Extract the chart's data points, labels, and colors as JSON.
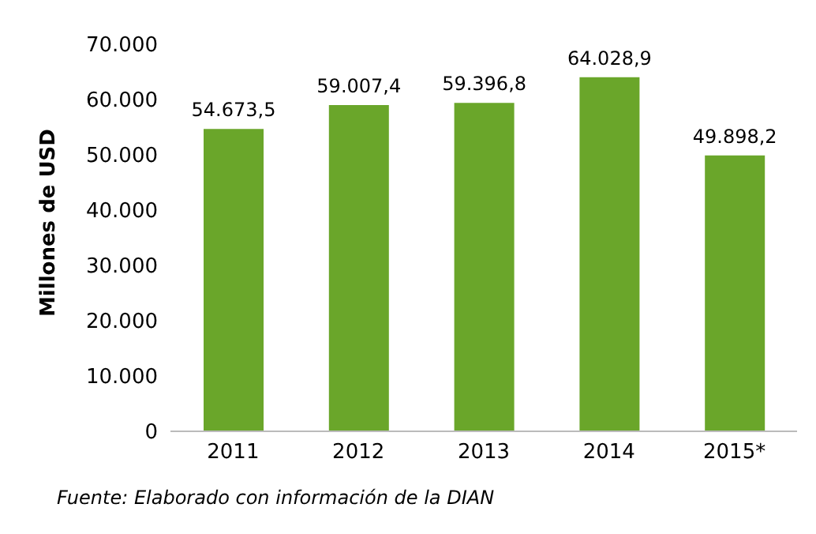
{
  "chart_data": {
    "type": "bar",
    "ylabel": "Millones de USD",
    "categories": [
      "2011",
      "2012",
      "2013",
      "2014",
      "2015*"
    ],
    "values": [
      54673.5,
      59007.4,
      59396.8,
      64028.9,
      49898.2
    ],
    "value_labels": [
      "54.673,5",
      "59.007,4",
      "59.396,8",
      "64.028,9",
      "49.898,2"
    ],
    "color": "#6aa62a",
    "ylim": [
      0,
      70000
    ],
    "yticks": [
      {
        "value": 0,
        "label": "0"
      },
      {
        "value": 10000,
        "label": "10.000"
      },
      {
        "value": 20000,
        "label": "20.000"
      },
      {
        "value": 30000,
        "label": "30.000"
      },
      {
        "value": 40000,
        "label": "40.000"
      },
      {
        "value": 50000,
        "label": "50.000"
      },
      {
        "value": 60000,
        "label": "60.000"
      },
      {
        "value": 70000,
        "label": "70.000"
      }
    ],
    "annotations": [
      "Fuente: Elaborado con información de la DIAN"
    ]
  }
}
